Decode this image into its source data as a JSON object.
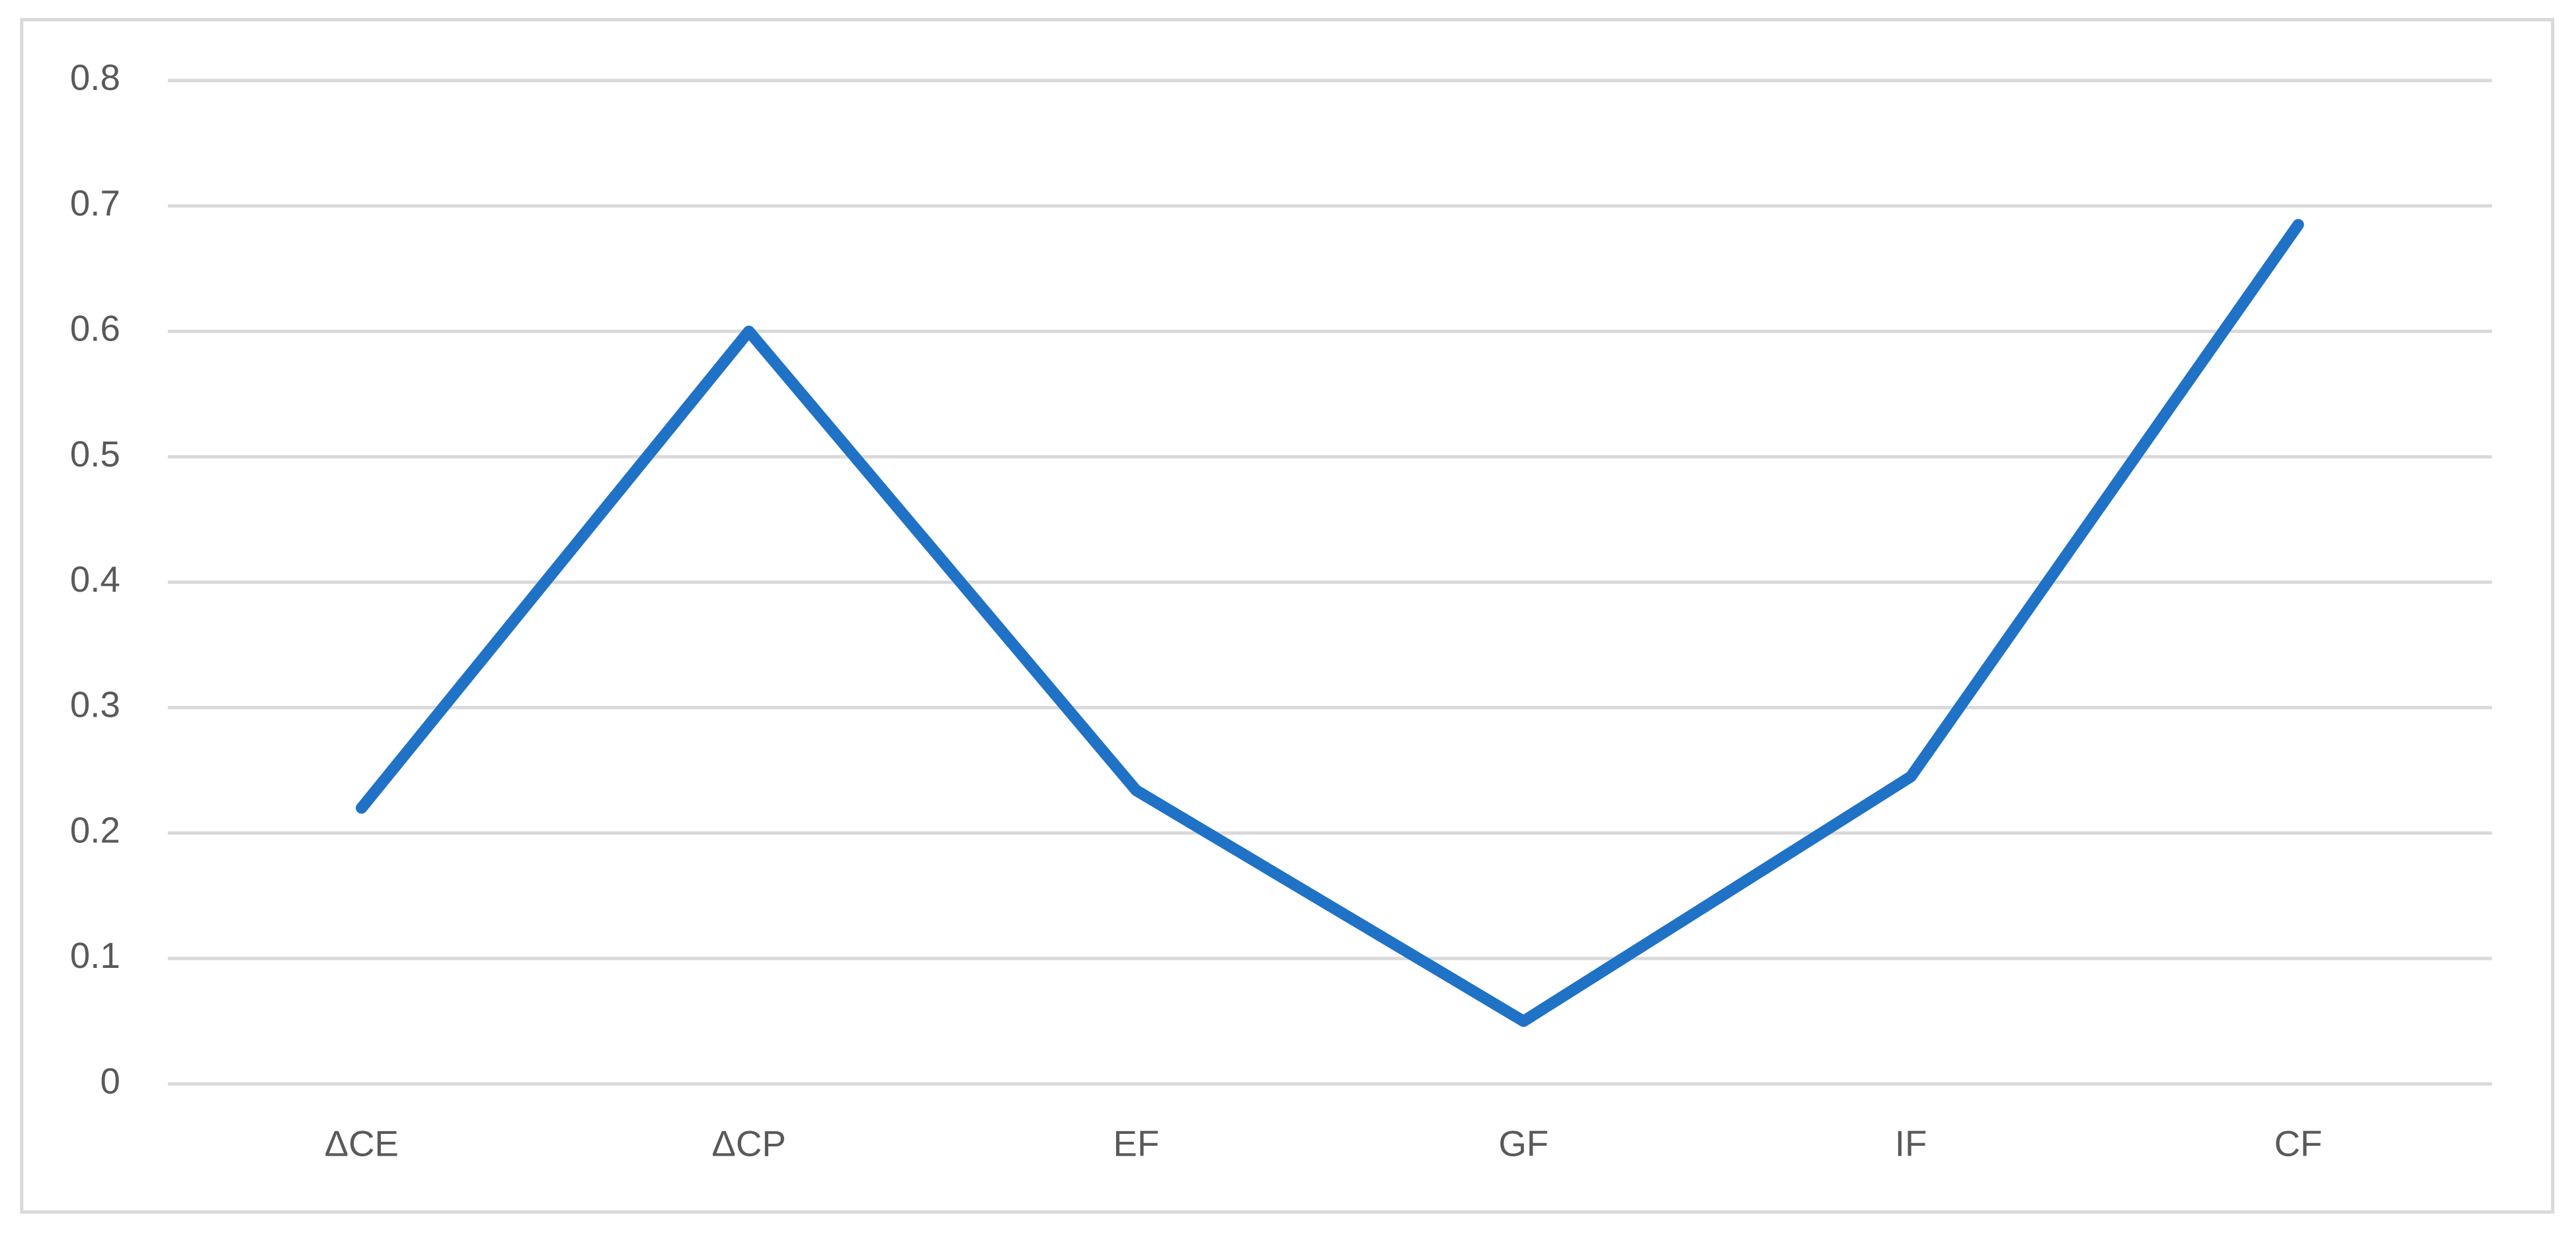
{
  "chart_data": {
    "type": "line",
    "categories": [
      "ΔCE",
      "ΔCP",
      "EF",
      "GF",
      "IF",
      "CF"
    ],
    "series": [
      {
        "color": "#1f72c6",
        "values": [
          0.22,
          0.6,
          0.234,
          0.05,
          0.245,
          0.685
        ]
      }
    ],
    "ylim": [
      0,
      0.8
    ],
    "yticks": [
      0,
      0.1,
      0.2,
      0.3,
      0.4,
      0.5,
      0.6,
      0.7,
      0.8
    ],
    "grid": true
  }
}
